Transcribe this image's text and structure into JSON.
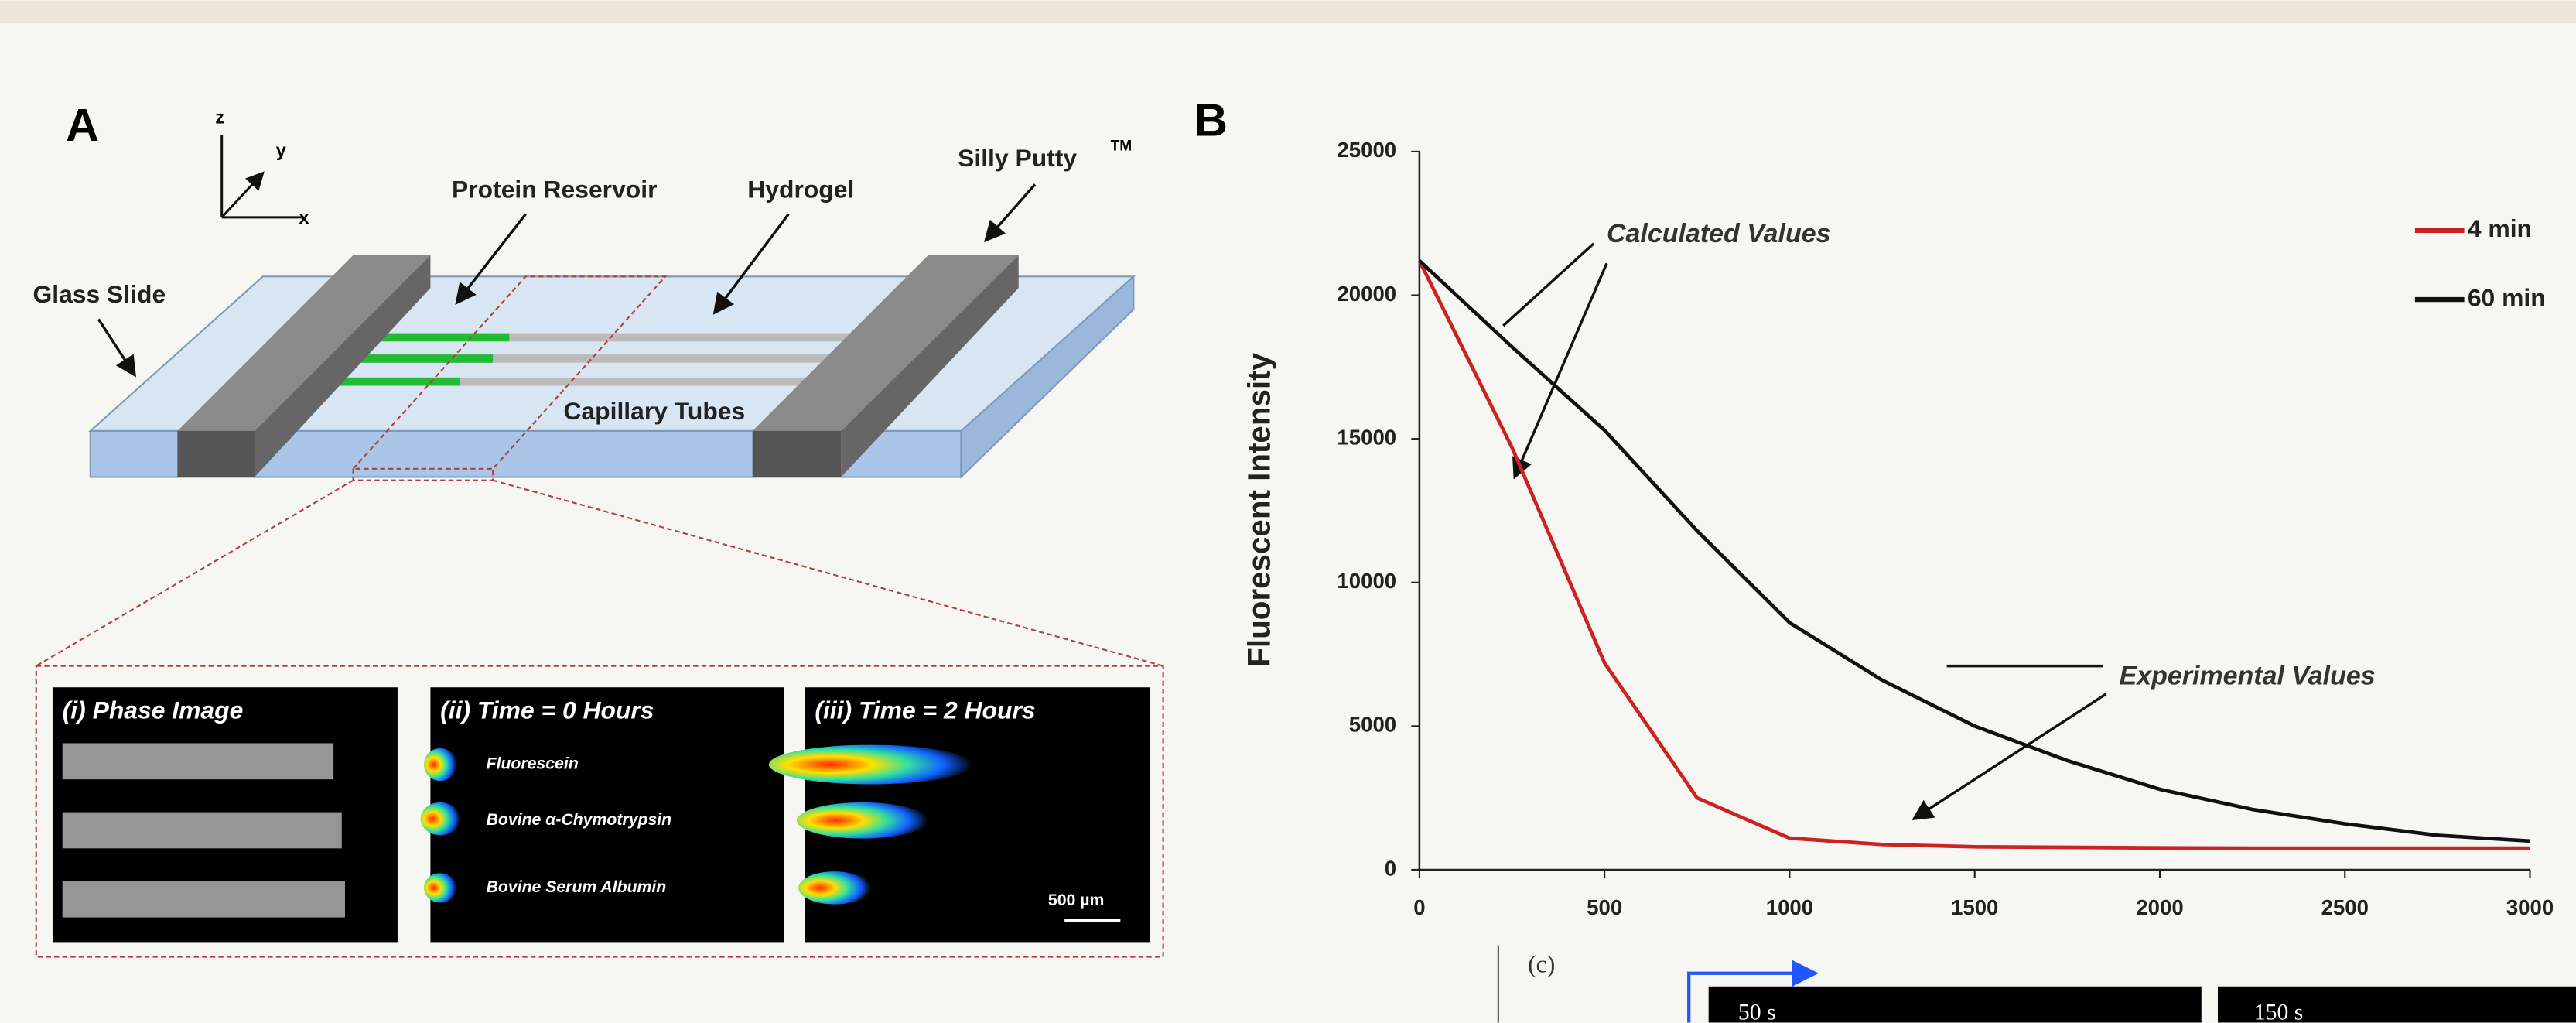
{
  "panel_a": {
    "label": "A",
    "axes": {
      "z": "z",
      "y": "y",
      "x": "x"
    },
    "glass_slide": "Glass Slide",
    "protein_reservoir": "Protein Reservoir",
    "hydrogel": "Hydrogel",
    "silly_putty": "Silly Putty",
    "silly_putty_mark": "TM",
    "capillary_tubes": "Capillary Tubes",
    "insets": [
      {
        "title": "(i) Phase Image"
      },
      {
        "title": "(ii) Time = 0 Hours",
        "rows": [
          "Fluorescein",
          "Bovine α-Chymotrypsin",
          "Bovine Serum Albumin"
        ]
      },
      {
        "title": "(iii) Time = 2 Hours",
        "scale_bar": "500 µm"
      }
    ]
  },
  "chart_data": {
    "type": "line",
    "panel_label": "B",
    "y_label": "Fluorescent Intensity",
    "annotations": [
      "Calculated Values",
      "Experimental Values"
    ],
    "x": [
      0,
      250,
      500,
      750,
      1000,
      1250,
      1500,
      1750,
      2000,
      2250,
      2500,
      2750,
      3000
    ],
    "series": [
      {
        "name": "4 min",
        "color": "#cc2222",
        "values": [
          21200,
          14700,
          7200,
          2500,
          1100,
          880,
          800,
          780,
          760,
          750,
          750,
          750,
          750
        ]
      },
      {
        "name": "60 min",
        "color": "#111111",
        "values": [
          21200,
          18200,
          15300,
          11800,
          8600,
          6600,
          5000,
          3800,
          2800,
          2100,
          1600,
          1200,
          1000
        ]
      }
    ],
    "xlim": [
      0,
      3000
    ],
    "xticks": [
      0,
      500,
      1000,
      1500,
      2000,
      2500,
      3000
    ],
    "ylim": [
      0,
      25000
    ],
    "yticks": [
      0,
      5000,
      10000,
      15000,
      20000,
      25000
    ],
    "legend": "upper right"
  },
  "panel_c": {
    "label": "(c)",
    "frames": [
      "50 s",
      "150 s"
    ]
  }
}
